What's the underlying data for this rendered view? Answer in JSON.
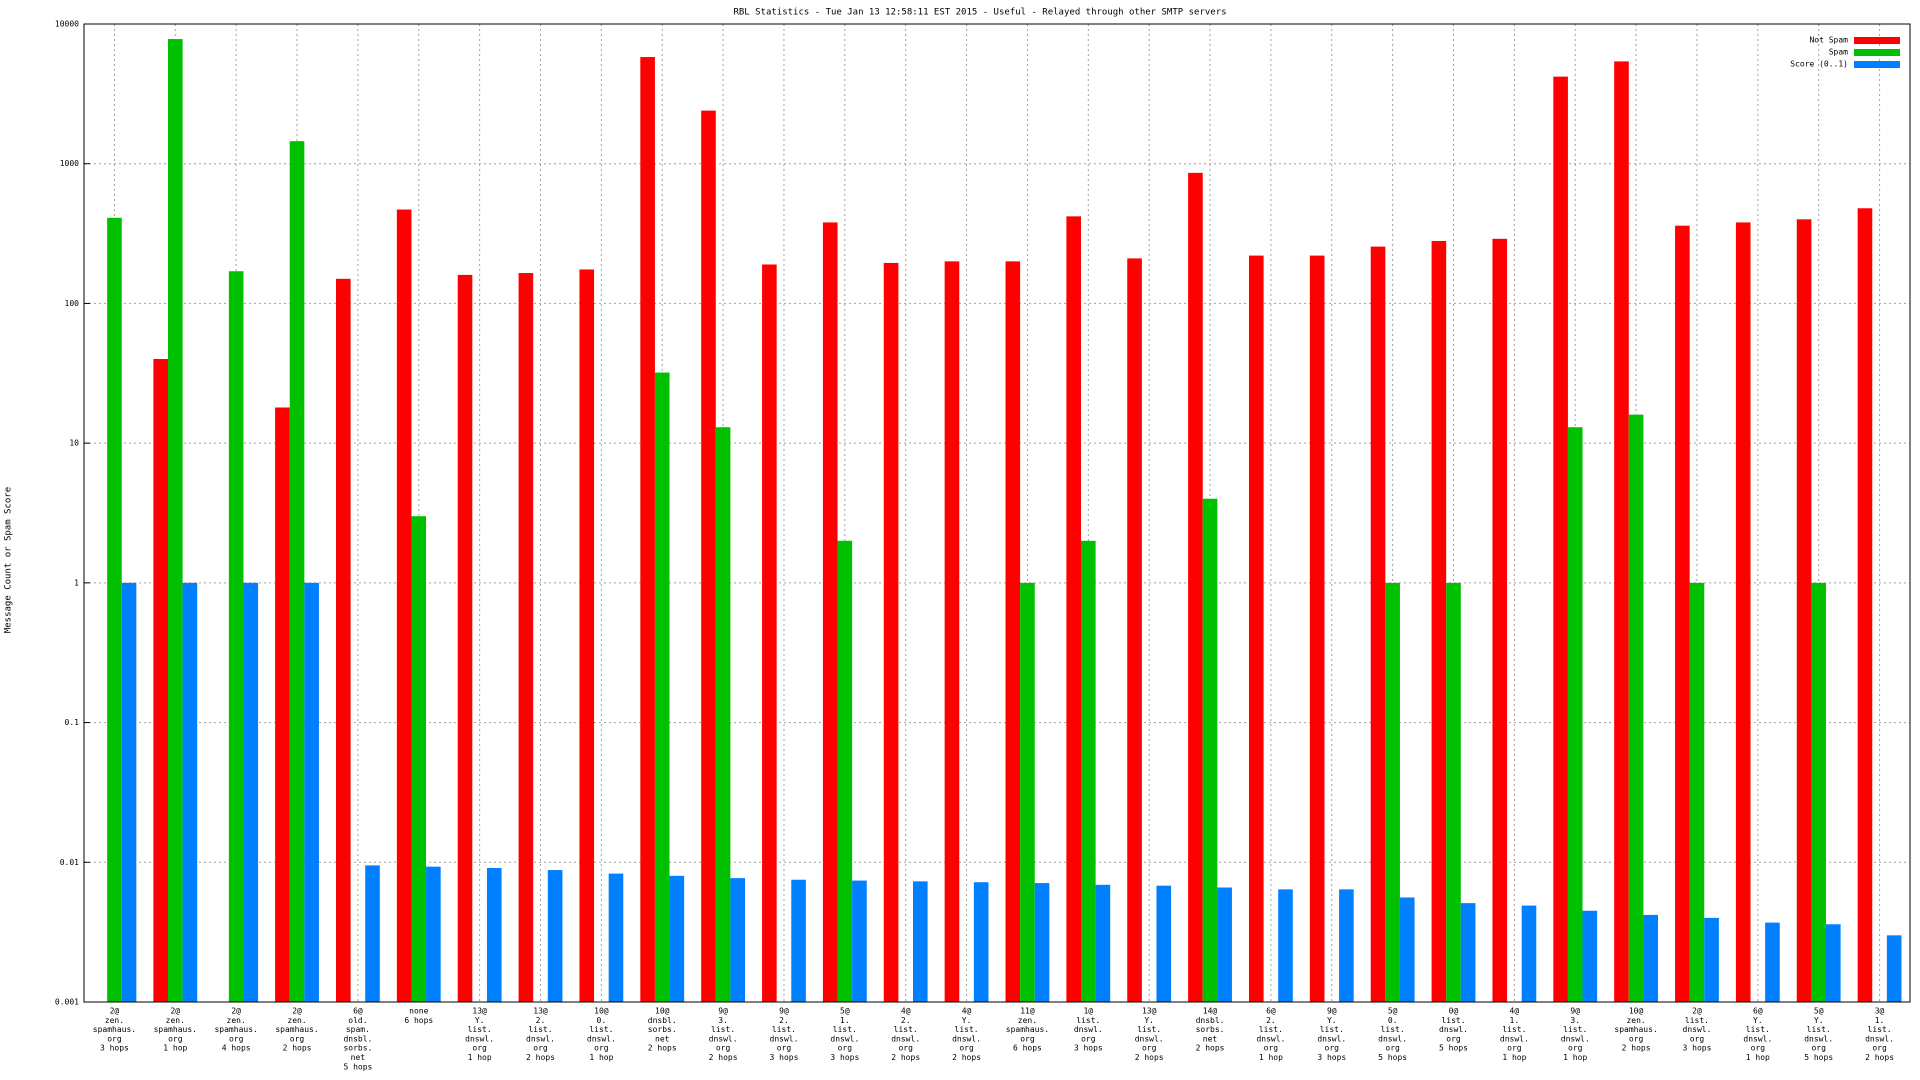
{
  "chart_data": {
    "type": "bar",
    "title": "RBL Statistics - Tue Jan 13 12:58:11 EST 2015 - Useful - Relayed through other SMTP servers",
    "ylabel": "Message Count or Spam Score",
    "log_scale": true,
    "grid": true,
    "legend": "top-right",
    "ylim": [
      0.001,
      10000
    ],
    "yticks": [
      0.001,
      0.01,
      0.1,
      1,
      10,
      100,
      1000,
      10000
    ],
    "categories": [
      [
        "2@",
        "zen.",
        "spamhaus.",
        "org",
        "3 hops"
      ],
      [
        "2@",
        "zen.",
        "spamhaus.",
        "org",
        "1 hop"
      ],
      [
        "2@",
        "zen.",
        "spamhaus.",
        "org",
        "4 hops"
      ],
      [
        "2@",
        "zen.",
        "spamhaus.",
        "org",
        "2 hops"
      ],
      [
        "6@",
        "old.",
        "spam.",
        "dnsbl.",
        "sorbs.",
        "net",
        "5 hops"
      ],
      [
        "none",
        "6 hops"
      ],
      [
        "13@",
        "Y.",
        "list.",
        "dnswl.",
        "org",
        "1 hop"
      ],
      [
        "13@",
        "2.",
        "list.",
        "dnswl.",
        "org",
        "2 hops"
      ],
      [
        "10@",
        "0.",
        "list.",
        "dnswl.",
        "org",
        "1 hop"
      ],
      [
        "10@",
        "dnsbl.",
        "sorbs.",
        "net",
        "2 hops"
      ],
      [
        "9@",
        "3.",
        "list.",
        "dnswl.",
        "org",
        "2 hops"
      ],
      [
        "9@",
        "2.",
        "list.",
        "dnswl.",
        "org",
        "3 hops"
      ],
      [
        "5@",
        "1.",
        "list.",
        "dnswl.",
        "org",
        "3 hops"
      ],
      [
        "4@",
        "2.",
        "list.",
        "dnswl.",
        "org",
        "2 hops"
      ],
      [
        "4@",
        "Y.",
        "list.",
        "dnswl.",
        "org",
        "2 hops"
      ],
      [
        "11@",
        "zen.",
        "spamhaus.",
        "org",
        "6 hops"
      ],
      [
        "1@",
        "list.",
        "dnswl.",
        "org",
        "3 hops"
      ],
      [
        "13@",
        "Y.",
        "list.",
        "dnswl.",
        "org",
        "2 hops"
      ],
      [
        "14@",
        "dnsbl.",
        "sorbs.",
        "net",
        "2 hops"
      ],
      [
        "6@",
        "2.",
        "list.",
        "dnswl.",
        "org",
        "1 hop"
      ],
      [
        "9@",
        "Y.",
        "list.",
        "dnswl.",
        "org",
        "3 hops"
      ],
      [
        "5@",
        "0.",
        "list.",
        "dnswl.",
        "org",
        "5 hops"
      ],
      [
        "0@",
        "list.",
        "dnswl.",
        "org",
        "5 hops"
      ],
      [
        "4@",
        "1.",
        "list.",
        "dnswl.",
        "org",
        "1 hop"
      ],
      [
        "9@",
        "3.",
        "list.",
        "dnswl.",
        "org",
        "1 hop"
      ],
      [
        "10@",
        "zen.",
        "spamhaus.",
        "org",
        "2 hops"
      ],
      [
        "2@",
        "list.",
        "dnswl.",
        "org",
        "3 hops"
      ],
      [
        "6@",
        "Y.",
        "list.",
        "dnswl.",
        "org",
        "1 hop"
      ],
      [
        "5@",
        "Y.",
        "list.",
        "dnswl.",
        "org",
        "5 hops"
      ],
      [
        "3@",
        "1.",
        "list.",
        "dnswl.",
        "org",
        "2 hops"
      ]
    ],
    "series": [
      {
        "name": "Not Spam",
        "color": "#ff0000",
        "values": [
          null,
          40,
          null,
          18,
          150,
          470,
          160,
          165,
          175,
          5800,
          2400,
          190,
          380,
          195,
          200,
          200,
          420,
          210,
          860,
          220,
          220,
          255,
          280,
          290,
          4200,
          5400,
          360,
          380,
          400,
          480
        ]
      },
      {
        "name": "Spam",
        "color": "#00c000",
        "values": [
          410,
          7800,
          170,
          1450,
          null,
          3,
          null,
          null,
          null,
          32,
          13,
          null,
          2,
          null,
          null,
          1,
          2,
          null,
          4,
          null,
          null,
          1,
          1,
          null,
          13,
          16,
          1,
          null,
          1,
          null
        ]
      },
      {
        "name": "Score (0..1)",
        "color": "#0080ff",
        "values": [
          1,
          1,
          1,
          1,
          0.0095,
          0.0093,
          0.0091,
          0.0088,
          0.0083,
          0.008,
          0.0077,
          0.0075,
          0.0074,
          0.0073,
          0.0072,
          0.0071,
          0.0069,
          0.0068,
          0.0066,
          0.0064,
          0.0064,
          0.0056,
          0.0051,
          0.0049,
          0.0045,
          0.0042,
          0.004,
          0.0037,
          0.0036,
          0.003
        ]
      }
    ]
  }
}
